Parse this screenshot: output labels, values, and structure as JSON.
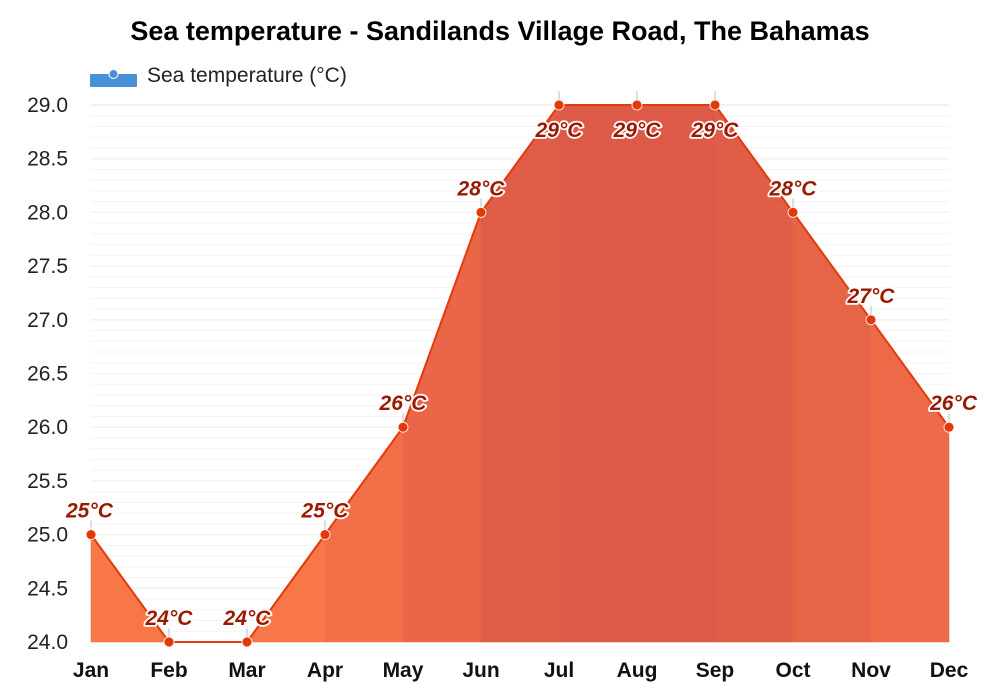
{
  "chart_data": {
    "type": "area",
    "title": "Sea temperature - Sandilands Village Road, The Bahamas",
    "categories": [
      "Jan",
      "Feb",
      "Mar",
      "Apr",
      "May",
      "Jun",
      "Jul",
      "Aug",
      "Sep",
      "Oct",
      "Nov",
      "Dec"
    ],
    "series": [
      {
        "name": "Sea temperature (°C)",
        "values": [
          25,
          24,
          24,
          25,
          26,
          28,
          29,
          29,
          29,
          28,
          27,
          26
        ],
        "data_labels": [
          "25°C",
          "24°C",
          "24°C",
          "25°C",
          "26°C",
          "28°C",
          "29°C",
          "29°C",
          "29°C",
          "28°C",
          "27°C",
          "26°C"
        ]
      }
    ],
    "ylim": [
      24.0,
      29.0
    ],
    "yticks": [
      "24.0",
      "24.5",
      "25.0",
      "25.5",
      "26.0",
      "26.5",
      "27.0",
      "27.5",
      "28.0",
      "28.5",
      "29.0"
    ],
    "xlabel": "",
    "ylabel": "",
    "grid": true,
    "legend": "top-left",
    "colors": {
      "line": "#e23a0b",
      "marker": "#e23a0b",
      "fill_cool": "#fb7a48",
      "fill_warm": "#dd5a48",
      "legend_swatch": "#4a90d9",
      "label": "#9a1a00"
    }
  }
}
